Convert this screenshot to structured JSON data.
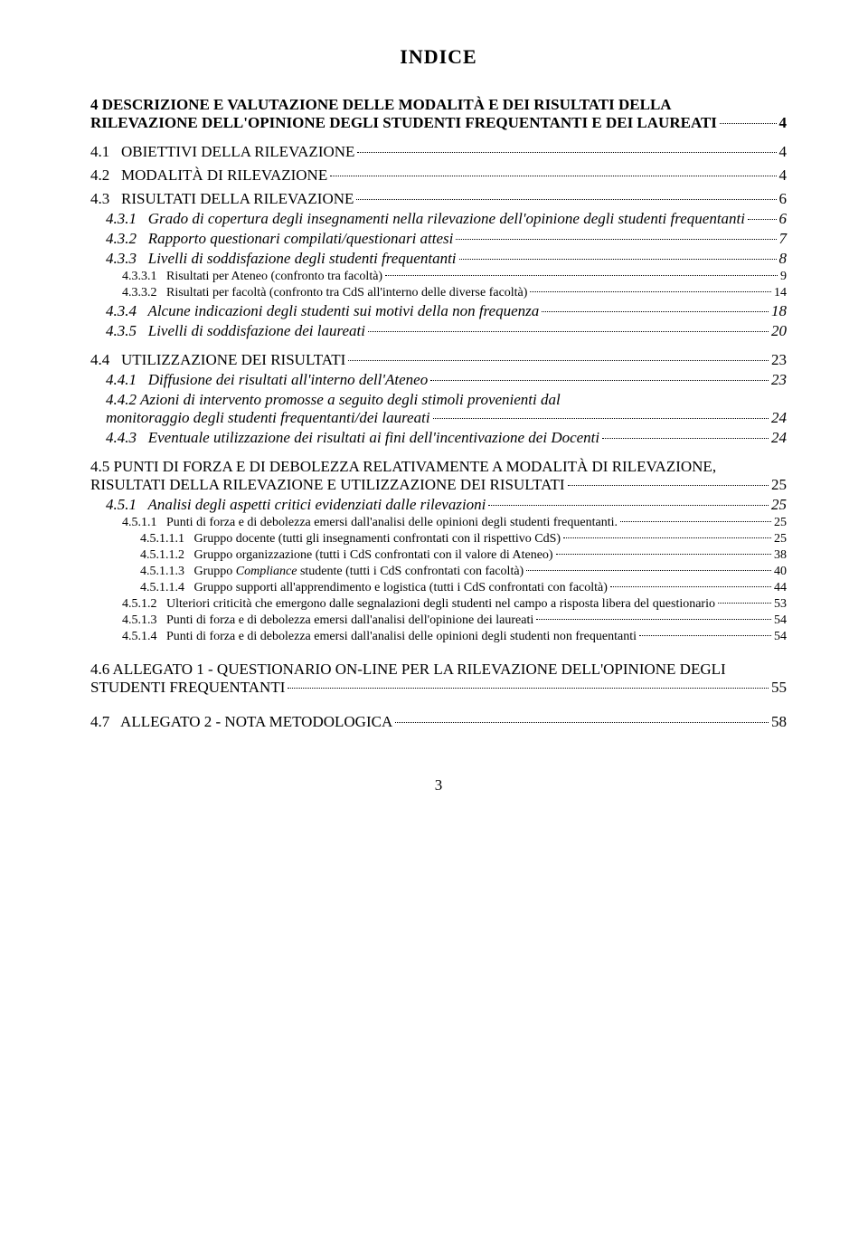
{
  "title": "INDICE",
  "colors": {
    "text": "#000000",
    "background": "#ffffff"
  },
  "entries": [
    {
      "level": "lvl0",
      "num": "4",
      "text": "DESCRIZIONE E VALUTAZIONE DELLE MODALITÀ E DEI RISULTATI DELLA RILEVAZIONE DELL'OPINIONE DEGLI STUDENTI FREQUENTANTI E DEI LAUREATI",
      "page": "4",
      "multiline": true,
      "smallcaps": false
    },
    {
      "level": "lvl1",
      "num": "4.1",
      "text": "OBIETTIVI DELLA RILEVAZIONE",
      "page": "4",
      "smallcaps": true,
      "gap": "gap-small"
    },
    {
      "level": "lvl1",
      "num": "4.2",
      "text": "MODALITÀ DI RILEVAZIONE",
      "page": "4",
      "smallcaps": true
    },
    {
      "level": "lvl1",
      "num": "4.3",
      "text": "RISULTATI DELLA RILEVAZIONE",
      "page": "6",
      "smallcaps": true
    },
    {
      "level": "lvl2",
      "num": "4.3.1",
      "text": "Grado di copertura degli insegnamenti nella rilevazione dell'opinione degli studenti frequentanti",
      "page": "6"
    },
    {
      "level": "lvl2",
      "num": "4.3.2",
      "text": "Rapporto questionari compilati/questionari attesi",
      "page": "7"
    },
    {
      "level": "lvl2",
      "num": "4.3.3",
      "text": "Livelli di soddisfazione degli studenti frequentanti",
      "page": "8"
    },
    {
      "level": "lvl3",
      "num": "4.3.3.1",
      "text": "Risultati per Ateneo (confronto tra facoltà)",
      "page": "9"
    },
    {
      "level": "lvl3",
      "num": "4.3.3.2",
      "text": "Risultati per facoltà (confronto tra CdS all'interno delle diverse facoltà)",
      "page": "14"
    },
    {
      "level": "lvl2",
      "num": "4.3.4",
      "text": "Alcune indicazioni degli studenti sui motivi della non frequenza",
      "page": "18"
    },
    {
      "level": "lvl2",
      "num": "4.3.5",
      "text": "Livelli di soddisfazione dei laureati",
      "page": "20"
    },
    {
      "level": "lvl1",
      "num": "4.4",
      "text": "UTILIZZAZIONE DEI RISULTATI",
      "page": "23",
      "smallcaps": true,
      "gap": "gap-small"
    },
    {
      "level": "lvl2",
      "num": "4.4.1",
      "text": "Diffusione dei risultati all'interno dell'Ateneo",
      "page": "23"
    },
    {
      "level": "lvl2",
      "num": "4.4.2",
      "text": "Azioni di intervento promosse a seguito degli stimoli provenienti dal monitoraggio degli studenti frequentanti/dei laureati",
      "page": "24",
      "multiline": true
    },
    {
      "level": "lvl2",
      "num": "4.4.3",
      "text": "Eventuale utilizzazione dei risultati ai fini dell'incentivazione dei Docenti",
      "page": "24"
    },
    {
      "level": "lvl1",
      "num": "4.5",
      "text": "PUNTI DI FORZA E DI DEBOLEZZA RELATIVAMENTE A MODALITÀ DI RILEVAZIONE, RISULTATI DELLA RILEVAZIONE E UTILIZZAZIONE DEI RISULTATI",
      "page": "25",
      "smallcaps": true,
      "multiline": true,
      "gap": "gap-small"
    },
    {
      "level": "lvl2",
      "num": "4.5.1",
      "text": "Analisi degli aspetti critici evidenziati dalle rilevazioni",
      "page": "25"
    },
    {
      "level": "lvl3",
      "num": "4.5.1.1",
      "text": "Punti di forza e di debolezza emersi dall'analisi delle opinioni degli studenti frequentanti.",
      "page": "25"
    },
    {
      "level": "lvl4",
      "num": "4.5.1.1.1",
      "text": "Gruppo docente (tutti gli insegnamenti confrontati con il rispettivo CdS)",
      "page": "25"
    },
    {
      "level": "lvl4",
      "num": "4.5.1.1.2",
      "text": "Gruppo organizzazione (tutti i CdS confrontati con il valore di Ateneo)",
      "page": "38"
    },
    {
      "level": "lvl4",
      "num": "4.5.1.1.3",
      "text": "Gruppo Compliance studente (tutti i CdS confrontati con facoltà)",
      "page": "40",
      "compliance_italic": true
    },
    {
      "level": "lvl4",
      "num": "4.5.1.1.4",
      "text": "Gruppo supporti all'apprendimento e logistica (tutti i CdS confrontati con facoltà)",
      "page": "44"
    },
    {
      "level": "lvl3",
      "num": "4.5.1.2",
      "text": "Ulteriori criticità che emergono dalle segnalazioni degli studenti nel campo a risposta libera del questionario",
      "page": "53"
    },
    {
      "level": "lvl3",
      "num": "4.5.1.3",
      "text": "Punti di forza e di debolezza emersi dall'analisi dell'opinione dei laureati",
      "page": "54"
    },
    {
      "level": "lvl3",
      "num": "4.5.1.4",
      "text": "Punti di forza e di debolezza emersi dall'analisi delle opinioni degli studenti non frequentanti",
      "page": "54"
    },
    {
      "level": "lvl1",
      "num": "4.6",
      "text": "ALLEGATO 1 - QUESTIONARIO ON-LINE PER LA RILEVAZIONE DELL'OPINIONE DEGLI STUDENTI FREQUENTANTI",
      "page": "55",
      "smallcaps": true,
      "multiline": true,
      "gap": "gap-med"
    },
    {
      "level": "lvl1",
      "num": "4.7",
      "text": "ALLEGATO 2 - NOTA METODOLOGICA",
      "page": "58",
      "smallcaps": true,
      "gap": "gap-med"
    }
  ],
  "page_number": "3"
}
